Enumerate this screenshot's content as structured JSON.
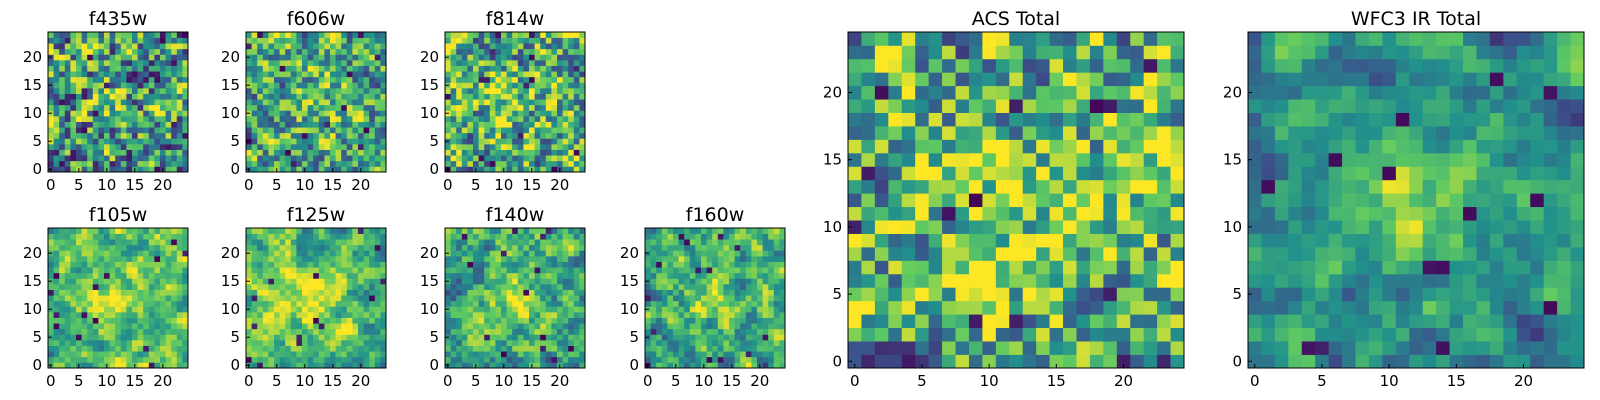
{
  "figure": {
    "colormap": [
      "#440154",
      "#3b528b",
      "#21918c",
      "#5ec962",
      "#fde725"
    ]
  },
  "chart_data": [
    {
      "type": "heatmap",
      "title": "f435w",
      "grid_size": [
        25,
        25
      ],
      "xlim": [
        0,
        24
      ],
      "ylim": [
        0,
        24
      ],
      "xticks": [
        0,
        5,
        10,
        15,
        20
      ],
      "yticks": [
        0,
        5,
        10,
        15,
        20
      ],
      "xtick_labels": [
        "0",
        "5",
        "10",
        "15",
        "20"
      ],
      "ytick_labels": [
        "0",
        "5",
        "10",
        "15",
        "20"
      ],
      "smoothness": 0.4,
      "seed": 11,
      "brightness": 0.52
    },
    {
      "type": "heatmap",
      "title": "f606w",
      "grid_size": [
        25,
        25
      ],
      "xlim": [
        0,
        24
      ],
      "ylim": [
        0,
        24
      ],
      "xticks": [
        0,
        5,
        10,
        15,
        20
      ],
      "yticks": [
        0,
        5,
        10,
        15,
        20
      ],
      "xtick_labels": [
        "0",
        "5",
        "10",
        "15",
        "20"
      ],
      "ytick_labels": [
        "0",
        "5",
        "10",
        "15",
        "20"
      ],
      "smoothness": 0.5,
      "seed": 23,
      "brightness": 0.6
    },
    {
      "type": "heatmap",
      "title": "f814w",
      "grid_size": [
        25,
        25
      ],
      "xlim": [
        0,
        24
      ],
      "ylim": [
        0,
        24
      ],
      "xticks": [
        0,
        5,
        10,
        15,
        20
      ],
      "yticks": [
        0,
        5,
        10,
        15,
        20
      ],
      "xtick_labels": [
        "0",
        "5",
        "10",
        "15",
        "20"
      ],
      "ytick_labels": [
        "0",
        "5",
        "10",
        "15",
        "20"
      ],
      "smoothness": 0.45,
      "seed": 37,
      "brightness": 0.62
    },
    {
      "type": "heatmap",
      "title": "f105w",
      "grid_size": [
        25,
        25
      ],
      "xlim": [
        0,
        24
      ],
      "ylim": [
        0,
        24
      ],
      "xticks": [
        0,
        5,
        10,
        15,
        20
      ],
      "yticks": [
        0,
        5,
        10,
        15,
        20
      ],
      "xtick_labels": [
        "0",
        "5",
        "10",
        "15",
        "20"
      ],
      "ytick_labels": [
        "0",
        "5",
        "10",
        "15",
        "20"
      ],
      "smoothness": 0.75,
      "seed": 41,
      "brightness": 0.68
    },
    {
      "type": "heatmap",
      "title": "f125w",
      "grid_size": [
        25,
        25
      ],
      "xlim": [
        0,
        24
      ],
      "ylim": [
        0,
        24
      ],
      "xticks": [
        0,
        5,
        10,
        15,
        20
      ],
      "yticks": [
        0,
        5,
        10,
        15,
        20
      ],
      "xtick_labels": [
        "0",
        "5",
        "10",
        "15",
        "20"
      ],
      "ytick_labels": [
        "0",
        "5",
        "10",
        "15",
        "20"
      ],
      "smoothness": 0.75,
      "seed": 53,
      "brightness": 0.7
    },
    {
      "type": "heatmap",
      "title": "f140w",
      "grid_size": [
        25,
        25
      ],
      "xlim": [
        0,
        24
      ],
      "ylim": [
        0,
        24
      ],
      "xticks": [
        0,
        5,
        10,
        15,
        20
      ],
      "yticks": [
        0,
        5,
        10,
        15,
        20
      ],
      "xtick_labels": [
        "0",
        "5",
        "10",
        "15",
        "20"
      ],
      "ytick_labels": [
        "0",
        "5",
        "10",
        "15",
        "20"
      ],
      "smoothness": 0.7,
      "seed": 67,
      "brightness": 0.62
    },
    {
      "type": "heatmap",
      "title": "f160w",
      "grid_size": [
        25,
        25
      ],
      "xlim": [
        0,
        24
      ],
      "ylim": [
        0,
        24
      ],
      "xticks": [
        0,
        5,
        10,
        15,
        20
      ],
      "yticks": [
        0,
        5,
        10,
        15,
        20
      ],
      "xtick_labels": [
        "0",
        "5",
        "10",
        "15",
        "20"
      ],
      "ytick_labels": [
        "0",
        "5",
        "10",
        "15",
        "20"
      ],
      "smoothness": 0.7,
      "seed": 79,
      "brightness": 0.62
    },
    {
      "type": "heatmap",
      "title": "ACS Total",
      "grid_size": [
        25,
        25
      ],
      "xlim": [
        0,
        24
      ],
      "ylim": [
        0,
        24
      ],
      "xticks": [
        0,
        5,
        10,
        15,
        20
      ],
      "yticks": [
        0,
        5,
        10,
        15,
        20
      ],
      "xtick_labels": [
        "0",
        "5",
        "10",
        "15",
        "20"
      ],
      "ytick_labels": [
        "0",
        "5",
        "10",
        "15",
        "20"
      ],
      "smoothness": 0.45,
      "seed": 97,
      "brightness": 0.64
    },
    {
      "type": "heatmap",
      "title": "WFC3 IR Total",
      "grid_size": [
        25,
        25
      ],
      "xlim": [
        0,
        24
      ],
      "ylim": [
        0,
        24
      ],
      "xticks": [
        0,
        5,
        10,
        15,
        20
      ],
      "yticks": [
        0,
        5,
        10,
        15,
        20
      ],
      "xtick_labels": [
        "0",
        "5",
        "10",
        "15",
        "20"
      ],
      "ytick_labels": [
        "0",
        "5",
        "10",
        "15",
        "20"
      ],
      "smoothness": 0.8,
      "seed": 113,
      "brightness": 0.5
    }
  ]
}
